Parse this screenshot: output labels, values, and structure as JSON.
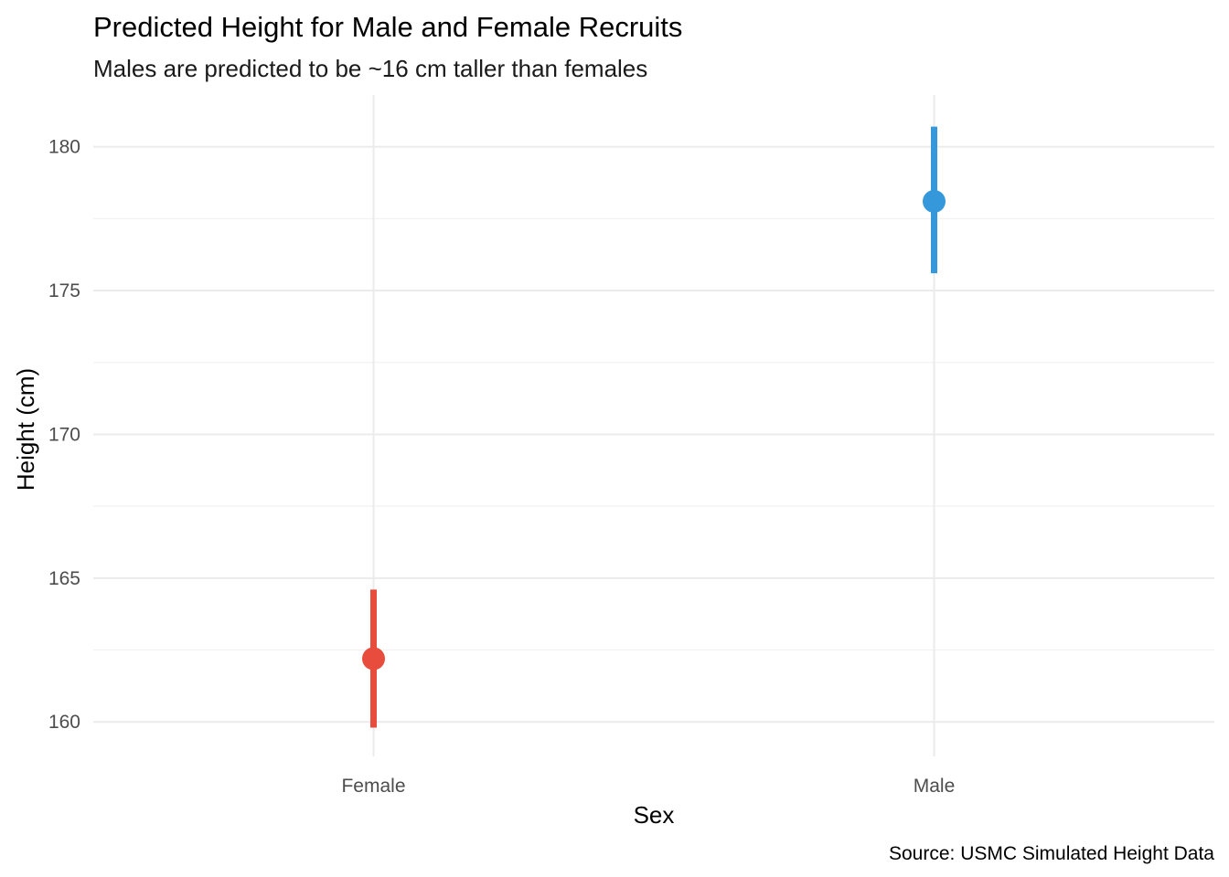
{
  "chart_data": {
    "type": "pointrange",
    "title": "Predicted Height for Male and Female Recruits",
    "subtitle": "Males are predicted to be ~16 cm taller than females",
    "xlabel": "Sex",
    "ylabel": "Height (cm)",
    "caption": "Source: USMC Simulated Height Data",
    "categories": [
      "Female",
      "Male"
    ],
    "estimate": [
      162.2,
      178.1
    ],
    "lower": [
      159.8,
      175.6
    ],
    "upper": [
      164.6,
      180.7
    ],
    "colors": [
      "#e74c3c",
      "#3498db"
    ],
    "ylim": [
      158.8,
      181.8
    ],
    "yticks": [
      160,
      165,
      170,
      175,
      180
    ],
    "ytick_labels": [
      "160",
      "165",
      "170",
      "175",
      "180"
    ],
    "grid": true,
    "legend": "none"
  }
}
